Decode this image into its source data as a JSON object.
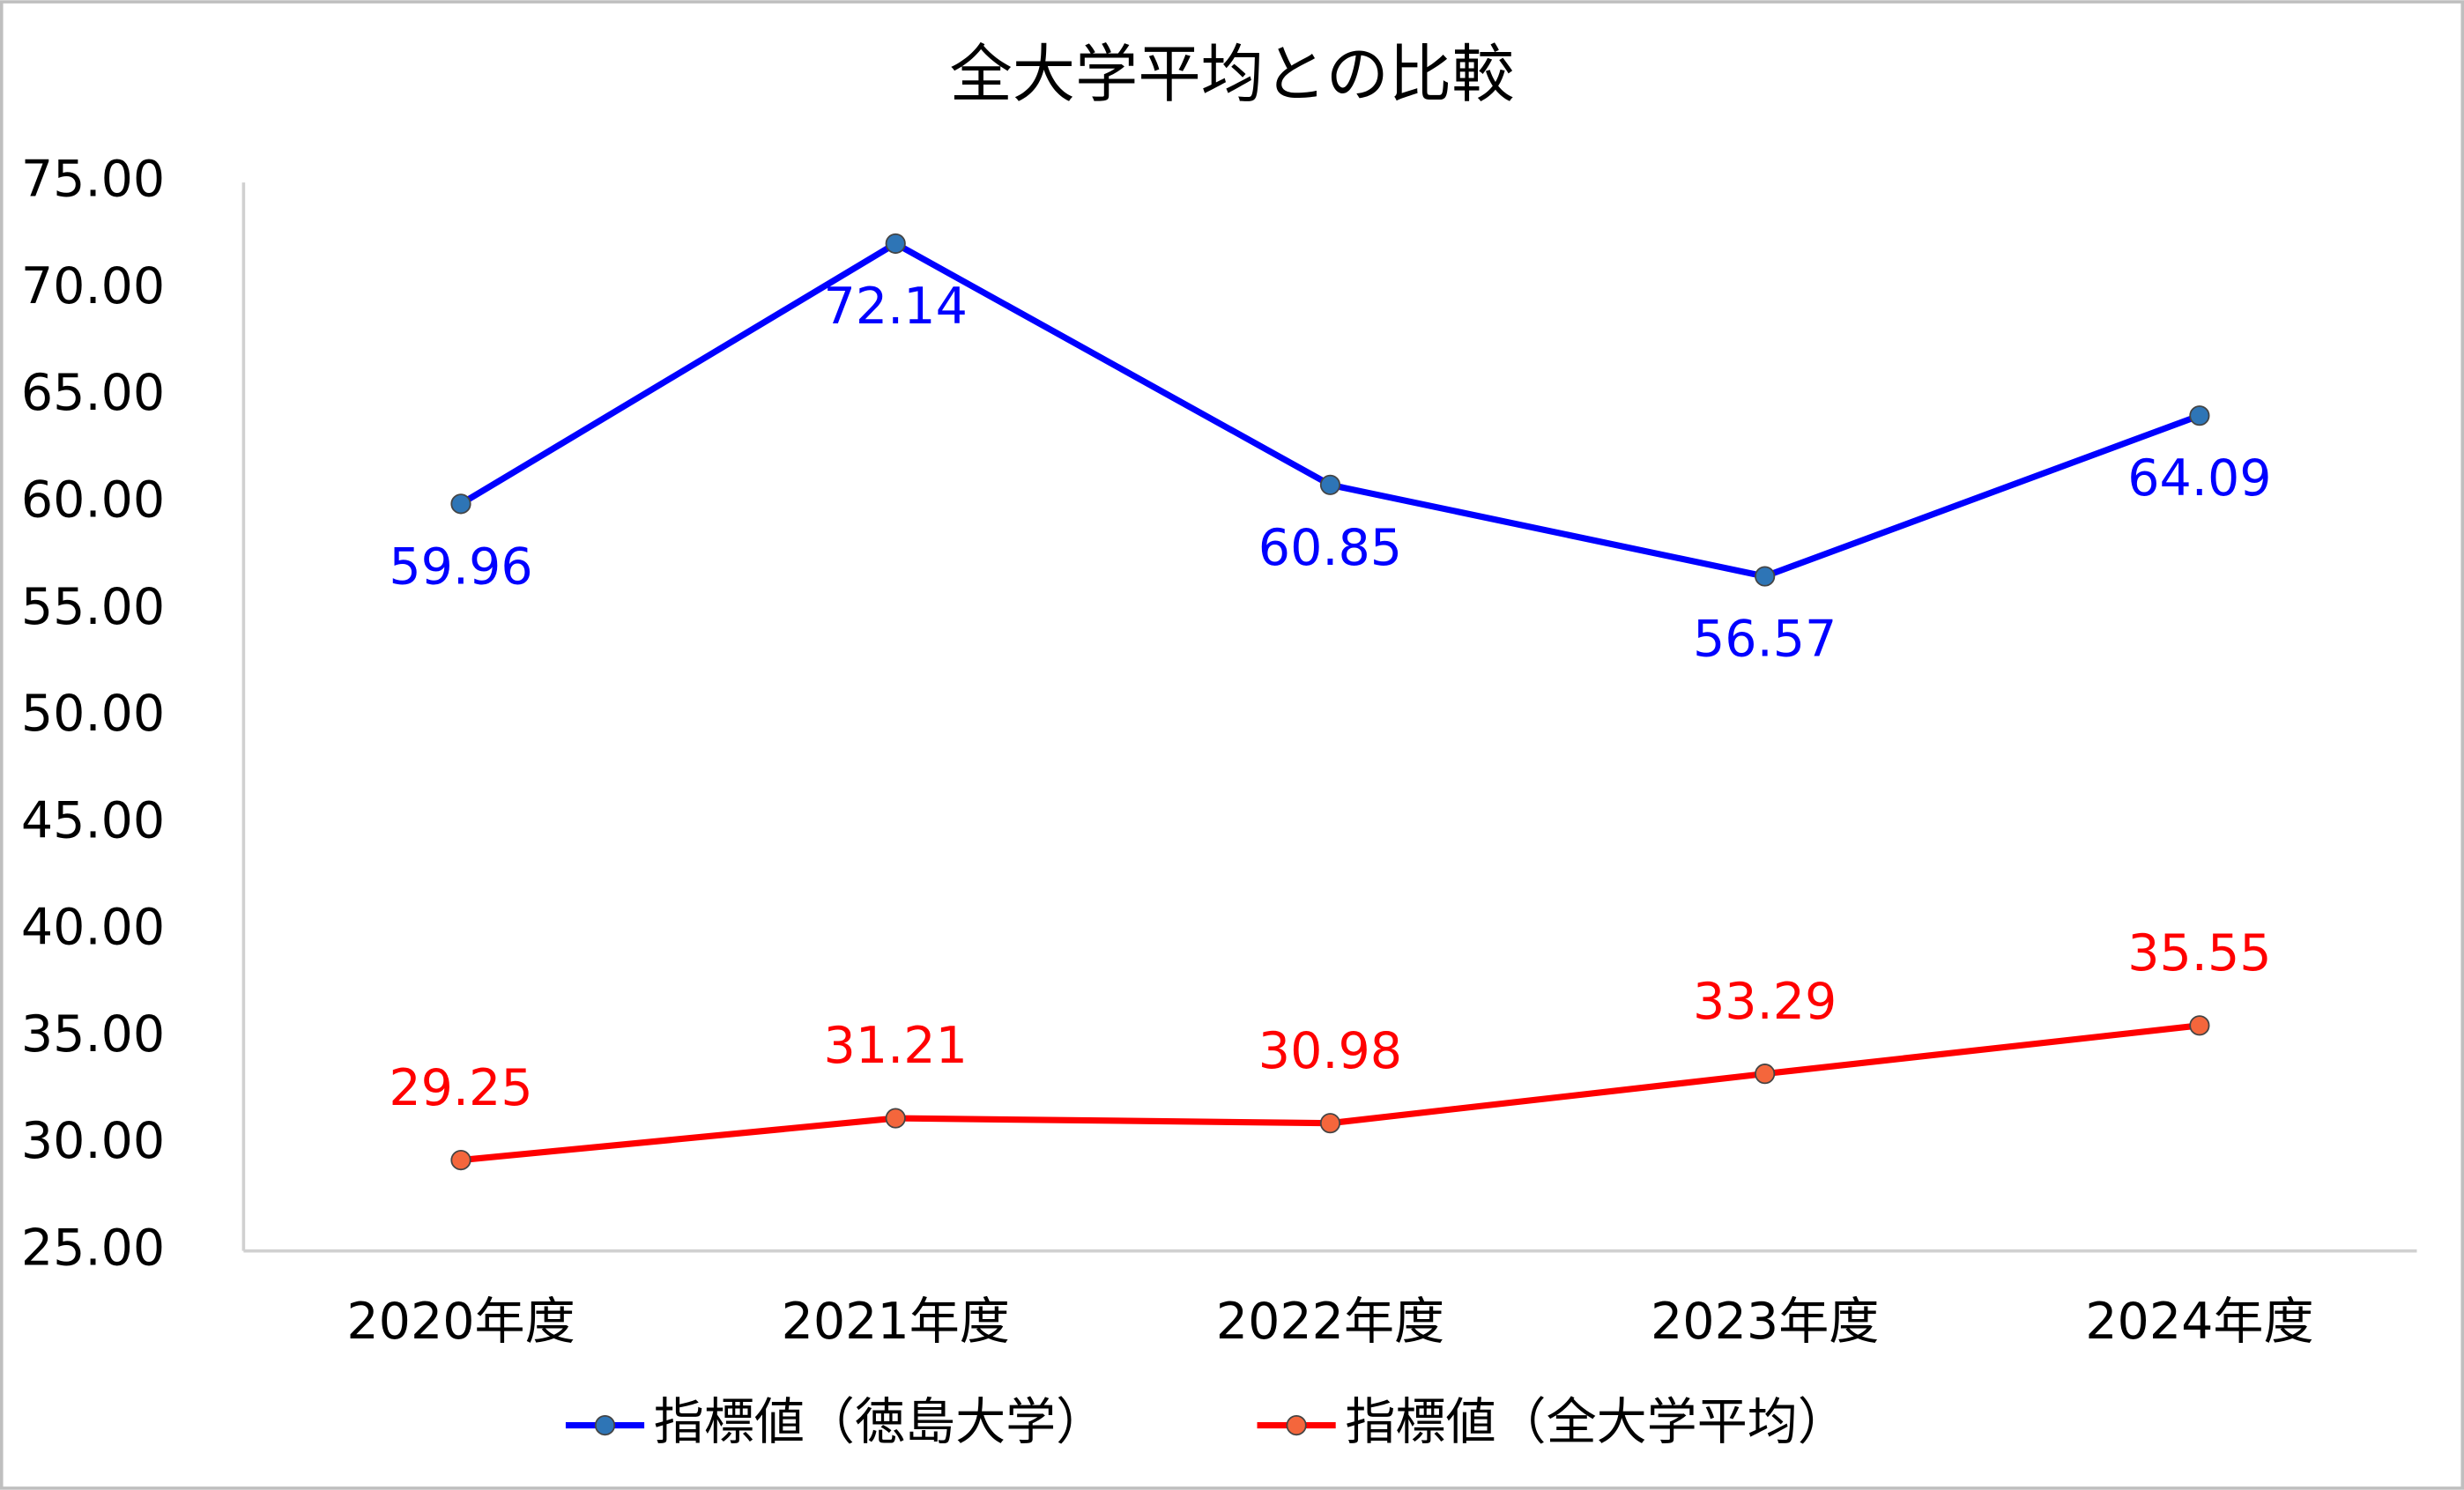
{
  "chart_data": {
    "type": "line",
    "title": "全大学平均との比較",
    "categories": [
      "2020年度",
      "2021年度",
      "2022年度",
      "2023年度",
      "2024年度"
    ],
    "series": [
      {
        "name": "指標値（徳島大学）",
        "color": "#0000ff",
        "marker_color": "#2e75b6",
        "values": [
          59.96,
          72.14,
          60.85,
          56.57,
          64.09
        ]
      },
      {
        "name": "指標値（全大学平均）",
        "color": "#ff0000",
        "marker_color": "#f4663c",
        "values": [
          29.25,
          31.21,
          30.98,
          33.29,
          35.55
        ]
      }
    ],
    "ylim": [
      25,
      75
    ],
    "yticks": [
      {
        "value": 25,
        "label": "25.00"
      },
      {
        "value": 30,
        "label": "30.00"
      },
      {
        "value": 35,
        "label": "35.00"
      },
      {
        "value": 40,
        "label": "40.00"
      },
      {
        "value": 45,
        "label": "45.00"
      },
      {
        "value": 50,
        "label": "50.00"
      },
      {
        "value": 55,
        "label": "55.00"
      },
      {
        "value": 60,
        "label": "60.00"
      },
      {
        "value": 65,
        "label": "65.00"
      },
      {
        "value": 70,
        "label": "70.00"
      },
      {
        "value": 75,
        "label": "75.00"
      }
    ],
    "grid": false,
    "legend": "bottom"
  }
}
